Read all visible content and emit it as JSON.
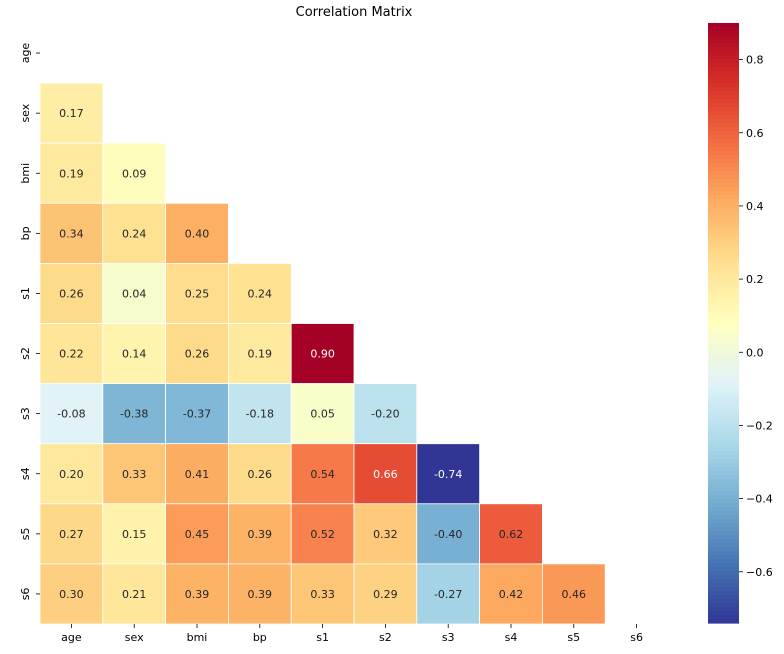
{
  "chart_data": {
    "type": "heatmap",
    "title": "Correlation Matrix",
    "xlabel": "",
    "ylabel": "",
    "variables": [
      "age",
      "sex",
      "bmi",
      "bp",
      "s1",
      "s2",
      "s3",
      "s4",
      "s5",
      "s6"
    ],
    "mask": "upper-triangle-and-diagonal",
    "lower_triangle": [
      [
        "0.17"
      ],
      [
        "0.19",
        "0.09"
      ],
      [
        "0.34",
        "0.24",
        "0.40"
      ],
      [
        "0.26",
        "0.04",
        "0.25",
        "0.24"
      ],
      [
        "0.22",
        "0.14",
        "0.26",
        "0.19",
        "0.90"
      ],
      [
        "-0.08",
        "-0.38",
        "-0.37",
        "-0.18",
        "0.05",
        "-0.20"
      ],
      [
        "0.20",
        "0.33",
        "0.41",
        "0.26",
        "0.54",
        "0.66",
        "-0.74"
      ],
      [
        "0.27",
        "0.15",
        "0.45",
        "0.39",
        "0.52",
        "0.32",
        "-0.40",
        "0.62"
      ],
      [
        "0.30",
        "0.21",
        "0.39",
        "0.39",
        "0.33",
        "0.29",
        "-0.27",
        "0.42",
        "0.46"
      ]
    ],
    "colormap": "RdYlBu_r",
    "colorbar": {
      "vmin": -0.74,
      "vmax": 0.9,
      "ticks": [
        "0.8",
        "0.6",
        "0.4",
        "0.2",
        "0.0",
        "−0.2",
        "−0.4",
        "−0.6"
      ]
    },
    "grid": false,
    "annotations": true
  }
}
